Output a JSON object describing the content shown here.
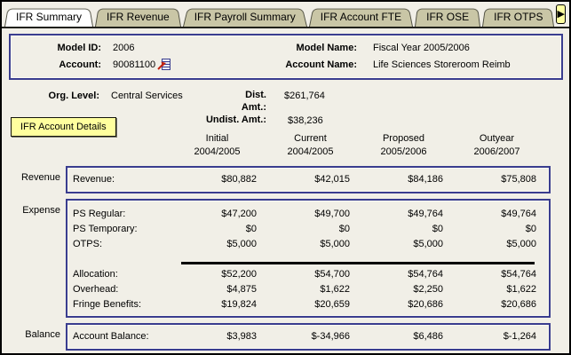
{
  "window": {
    "title": "IFR Summary"
  },
  "colors": {
    "page_bg": "#F1EFE7",
    "frame_navy": "#3A3D8F",
    "tab_inactive_tan": "#C9C6A6",
    "tab_active_white": "#FFFFFF",
    "button_yellow": "#FFFF9E",
    "divider_black": "#000000",
    "transfer_arrow_red": "#C22211"
  },
  "tabs": {
    "items": [
      {
        "label": "IFR Summary",
        "active": true
      },
      {
        "label": "IFR Revenue",
        "active": false
      },
      {
        "label": "IFR Payroll Summary",
        "active": false
      },
      {
        "label": "IFR Account FTE",
        "active": false
      },
      {
        "label": "IFR OSE",
        "active": false
      },
      {
        "label": "IFR OTPS",
        "active": false
      }
    ],
    "scroll_right_glyph": "▶"
  },
  "header": {
    "model_id_label": "Model ID:",
    "model_id": "2006",
    "model_name_label": "Model Name:",
    "model_name": "Fiscal Year 2005/2006",
    "account_label": "Account:",
    "account": "90081100",
    "account_icon": "transfer-icon",
    "account_name_label": "Account Name:",
    "account_name": "Life Sciences Storeroom Reimb"
  },
  "summary": {
    "org_level_label": "Org. Level:",
    "org_level": "Central Services",
    "dist_amt_label_line1": "Dist.",
    "dist_amt_label_line2": "Amt.:",
    "dist_amt": "$261,764",
    "undist_amt_label": "Undist. Amt.:",
    "undist_amt": "$38,236",
    "details_button_label": "IFR Account Details"
  },
  "table": {
    "columns": [
      {
        "line1": "Initial",
        "line2": "2004/2005"
      },
      {
        "line1": "Current",
        "line2": "2004/2005"
      },
      {
        "line1": "Proposed",
        "line2": "2005/2006"
      },
      {
        "line1": "Outyear",
        "line2": "2006/2007"
      }
    ],
    "sections": [
      {
        "name": "Revenue",
        "rows": [
          {
            "label": "Revenue:",
            "values": [
              "$80,882",
              "$42,015",
              "$84,186",
              "$75,808"
            ]
          }
        ]
      },
      {
        "name": "Expense",
        "rows": [
          {
            "label": "PS Regular:",
            "values": [
              "$47,200",
              "$49,700",
              "$49,764",
              "$49,764"
            ]
          },
          {
            "label": "PS Temporary:",
            "values": [
              "$0",
              "$0",
              "$0",
              "$0"
            ]
          },
          {
            "label": "OTPS:",
            "values": [
              "$5,000",
              "$5,000",
              "$5,000",
              "$5,000"
            ]
          },
          {
            "type": "divider"
          },
          {
            "label": "Allocation:",
            "values": [
              "$52,200",
              "$54,700",
              "$54,764",
              "$54,764"
            ]
          },
          {
            "label": "Overhead:",
            "values": [
              "$4,875",
              "$1,622",
              "$2,250",
              "$1,622"
            ]
          },
          {
            "label": "Fringe Benefits:",
            "values": [
              "$19,824",
              "$20,659",
              "$20,686",
              "$20,686"
            ]
          }
        ]
      },
      {
        "name": "Balance",
        "rows": [
          {
            "label": "Account Balance:",
            "values": [
              "$3,983",
              "$-34,966",
              "$6,486",
              "$-1,264"
            ]
          }
        ]
      }
    ]
  }
}
